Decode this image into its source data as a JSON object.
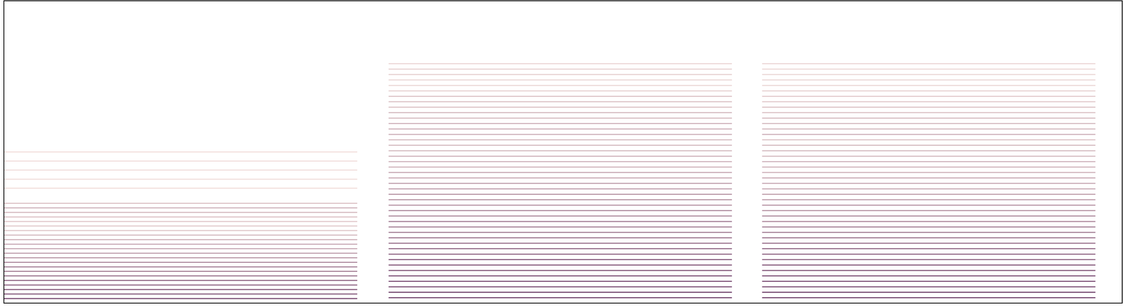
{
  "chart_data": {
    "type": "spectrogram",
    "tick_labels": false,
    "grid": false,
    "xlim": [
      0,
      100
    ],
    "ylim": [
      0,
      100
    ],
    "color": [
      "#f4c8b8",
      "#5a2658"
    ],
    "segments": [
      {
        "x": [
          0,
          31.6
        ],
        "harmonics": [
          1.5,
          3,
          4.5,
          6,
          7.5,
          9,
          10.5,
          12,
          13.5,
          15,
          16.5,
          18,
          19.5,
          21,
          22.5,
          24,
          25.5,
          27,
          28.5,
          30,
          31.5,
          33,
          38,
          41,
          44,
          47,
          50
        ],
        "levels": [
          0.9,
          0.85,
          0.85,
          0.8,
          0.8,
          0.75,
          0.7,
          0.7,
          0.65,
          0.6,
          0.55,
          0.5,
          0.5,
          0.45,
          0.4,
          0.3,
          0.3,
          0.3,
          0.35,
          0.4,
          0.45,
          0.35,
          0.15,
          0.15,
          0.15,
          0.15,
          0.15
        ]
      },
      {
        "x": [
          34.4,
          65.1
        ],
        "harmonics": [
          1.8,
          3.6,
          5.4,
          7.2,
          9,
          10.8,
          12.6,
          14.4,
          16.2,
          18,
          19.8,
          21.6,
          23.4,
          25.2,
          27,
          28.8,
          30.6,
          32.4,
          34.2,
          36,
          37.8,
          39.6,
          41.4,
          43.2,
          45,
          46.8,
          48.6,
          50.4,
          52.2,
          54,
          55.8,
          57.6,
          59.4,
          61.2,
          63,
          64.8,
          66.6,
          68.4,
          70.2,
          72,
          73.8,
          75.6,
          77.4,
          79.2
        ],
        "levels": [
          0.95,
          0.95,
          0.9,
          0.9,
          0.9,
          0.85,
          0.85,
          0.85,
          0.8,
          0.8,
          0.75,
          0.75,
          0.7,
          0.7,
          0.7,
          0.65,
          0.65,
          0.6,
          0.6,
          0.6,
          0.55,
          0.55,
          0.5,
          0.5,
          0.45,
          0.45,
          0.45,
          0.4,
          0.4,
          0.4,
          0.45,
          0.45,
          0.45,
          0.4,
          0.4,
          0.35,
          0.35,
          0.35,
          0.25,
          0.2,
          0.2,
          0.25,
          0.25,
          0.2
        ]
      },
      {
        "x": [
          67.8,
          97.6
        ],
        "harmonics": [
          1.8,
          3.6,
          5.4,
          7.2,
          9,
          10.8,
          12.6,
          14.4,
          16.2,
          18,
          19.8,
          21.6,
          23.4,
          25.2,
          27,
          28.8,
          30.6,
          32.4,
          34.2,
          36,
          37.8,
          39.6,
          41.4,
          43.2,
          45,
          46.8,
          48.6,
          50.4,
          52.2,
          54,
          55.8,
          57.6,
          59.4,
          61.2,
          63,
          64.8,
          66.6,
          68.4,
          70.2,
          72,
          73.8,
          75.6,
          77.4,
          79.2
        ],
        "levels": [
          0.95,
          0.95,
          0.9,
          0.9,
          0.9,
          0.85,
          0.85,
          0.8,
          0.8,
          0.8,
          0.75,
          0.75,
          0.7,
          0.7,
          0.65,
          0.65,
          0.6,
          0.6,
          0.55,
          0.55,
          0.5,
          0.5,
          0.5,
          0.45,
          0.45,
          0.45,
          0.4,
          0.4,
          0.4,
          0.35,
          0.45,
          0.4,
          0.4,
          0.4,
          0.35,
          0.35,
          0.3,
          0.3,
          0.25,
          0.2,
          0.2,
          0.2,
          0.2,
          0.2
        ]
      }
    ]
  }
}
